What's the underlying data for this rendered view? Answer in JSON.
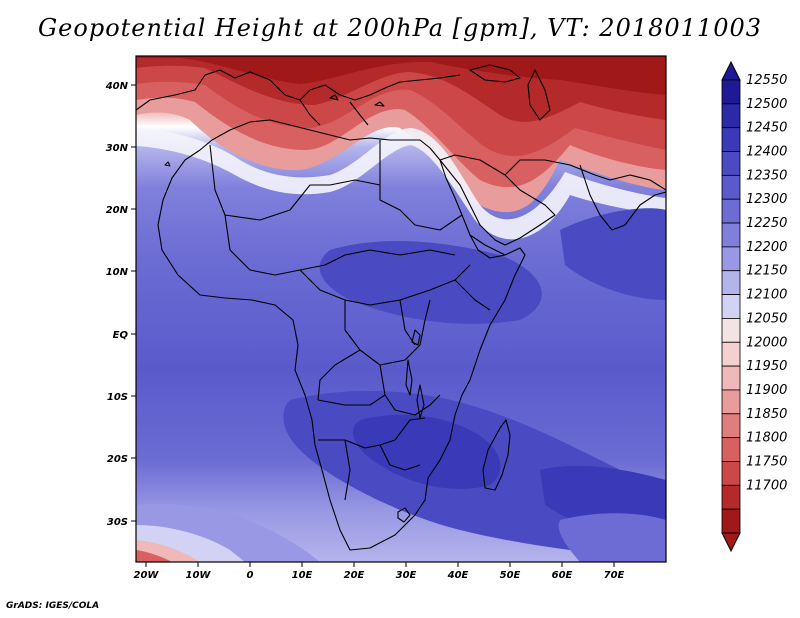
{
  "title": "Geopotential Height at 200hPa [gpm], VT: 2018011003",
  "credit": "GrADS: IGES/COLA",
  "lat_labels": [
    "40N",
    "30N",
    "20N",
    "10N",
    "EQ",
    "10S",
    "20S",
    "30S"
  ],
  "lon_labels": [
    "20W",
    "10W",
    "0",
    "10E",
    "20E",
    "30E",
    "40E",
    "50E",
    "60E",
    "70E"
  ],
  "colorbar": {
    "levels": [
      "12550",
      "12500",
      "12450",
      "12400",
      "12350",
      "12300",
      "12250",
      "12200",
      "12150",
      "12100",
      "12050",
      "12000",
      "11950",
      "11900",
      "11850",
      "11800",
      "11750",
      "11700"
    ],
    "colors": [
      "#1e1a96",
      "#2a2aa8",
      "#3a3ab8",
      "#4a4ac2",
      "#5a5acc",
      "#6c6cd4",
      "#8080dc",
      "#9898e4",
      "#b4b4ec",
      "#d2d2f4",
      "#f2e4e4",
      "#f4d0d0",
      "#f0b8b8",
      "#e89c9c",
      "#e07e7e",
      "#d86060",
      "#cc4848",
      "#b42a2a",
      "#a01818"
    ]
  },
  "chart_data": {
    "type": "heatmap",
    "title": "Geopotential Height at 200hPa [gpm], VT: 2018011003",
    "variable": "Geopotential Height",
    "units": "gpm",
    "level": "200hPa",
    "valid_time": "2018011003",
    "x_range": [
      -22,
      80
    ],
    "y_range": [
      -37,
      45
    ],
    "x_ticks": [
      "20W",
      "10W",
      "0",
      "10E",
      "20E",
      "30E",
      "40E",
      "50E",
      "60E",
      "70E"
    ],
    "y_ticks": [
      "40N",
      "30N",
      "20N",
      "10N",
      "EQ",
      "10S",
      "20S",
      "30S"
    ],
    "contour_levels": [
      11700,
      11750,
      11800,
      11850,
      11900,
      11950,
      12000,
      12050,
      12100,
      12150,
      12200,
      12250,
      12300,
      12350,
      12400,
      12450,
      12500,
      12550
    ]
  }
}
